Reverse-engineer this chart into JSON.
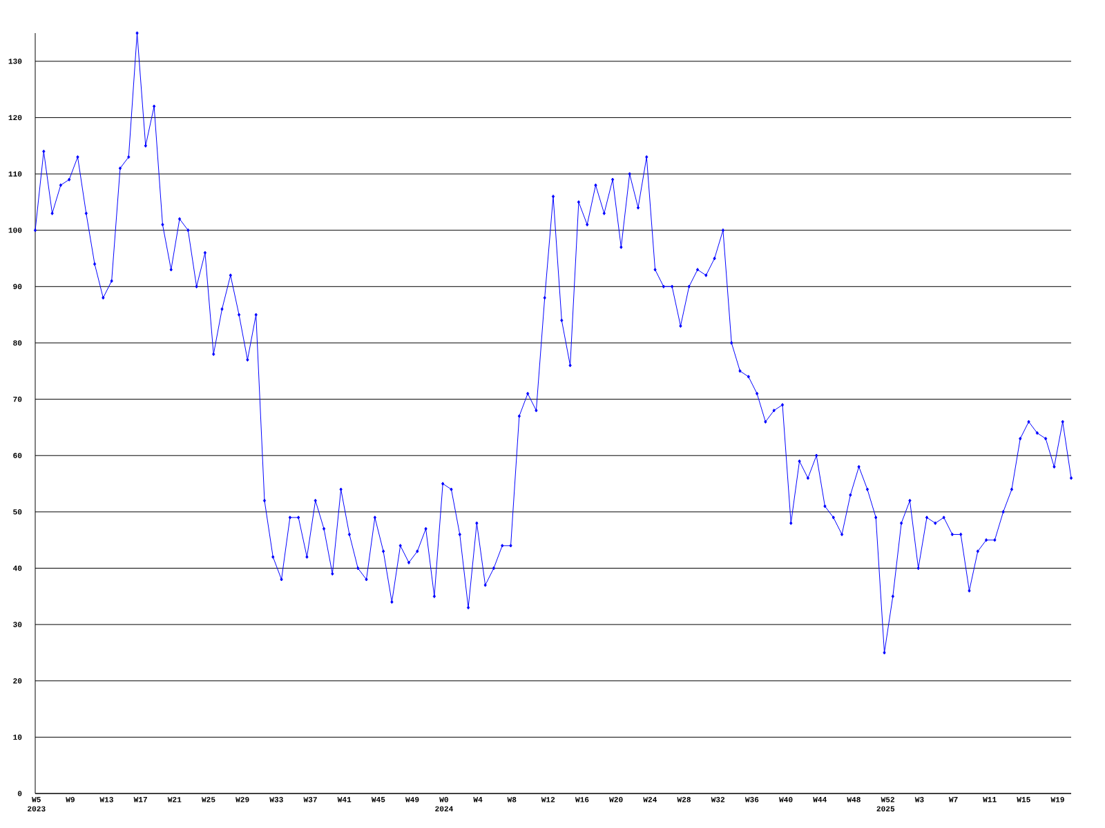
{
  "chart_data": {
    "type": "line",
    "categories": [
      "W5",
      null,
      null,
      null,
      "W9",
      null,
      null,
      null,
      "W13",
      null,
      null,
      null,
      "W17",
      null,
      null,
      null,
      "W21",
      null,
      null,
      null,
      "W25",
      null,
      null,
      null,
      "W29",
      null,
      null,
      null,
      "W33",
      null,
      null,
      null,
      "W37",
      null,
      null,
      null,
      "W41",
      null,
      null,
      null,
      "W45",
      null,
      null,
      null,
      "W49",
      null,
      null,
      null,
      "W0",
      null,
      null,
      null,
      "W4",
      null,
      null,
      null,
      "W8",
      null,
      null,
      null,
      "W12",
      null,
      null,
      null,
      "W16",
      null,
      null,
      null,
      "W20",
      null,
      null,
      null,
      "W24",
      null,
      null,
      null,
      "W28",
      null,
      null,
      null,
      "W32",
      null,
      null,
      null,
      "W36",
      null,
      null,
      null,
      "W40",
      null,
      null,
      null,
      "W44",
      null,
      null,
      null,
      "W48",
      null,
      null,
      null,
      "W52",
      null,
      null,
      null,
      "W3",
      null,
      null,
      null,
      "W7",
      null,
      null,
      null,
      "W11",
      null,
      null,
      null,
      "W15",
      null,
      null,
      null,
      "W19",
      null,
      null
    ],
    "values": [
      100,
      114,
      103,
      108,
      109,
      113,
      103,
      94,
      88,
      91,
      111,
      113,
      135,
      115,
      122,
      101,
      93,
      102,
      100,
      90,
      96,
      78,
      86,
      92,
      85,
      77,
      85,
      52,
      42,
      38,
      49,
      49,
      42,
      52,
      47,
      39,
      54,
      46,
      40,
      38,
      49,
      43,
      34,
      44,
      41,
      43,
      47,
      35,
      55,
      54,
      46,
      33,
      48,
      37,
      40,
      44,
      44,
      67,
      71,
      68,
      88,
      106,
      84,
      76,
      105,
      101,
      108,
      103,
      109,
      97,
      110,
      104,
      113,
      93,
      90,
      90,
      83,
      90,
      93,
      92,
      95,
      100,
      80,
      75,
      74,
      71,
      66,
      68,
      69,
      48,
      59,
      56,
      60,
      51,
      49,
      46,
      53,
      58,
      54,
      49,
      25,
      35,
      48,
      52,
      40,
      49,
      48,
      49,
      46,
      46,
      36,
      43,
      45,
      45,
      50,
      54,
      63,
      66,
      64,
      63,
      58,
      66,
      56
    ],
    "color": "#0000ff",
    "ylim": [
      0,
      135
    ],
    "yticks": [
      0,
      10,
      20,
      30,
      40,
      50,
      60,
      70,
      80,
      90,
      100,
      110,
      120,
      130
    ],
    "annotations": [
      "2023",
      "2024",
      "2025"
    ],
    "grid": "y",
    "marker": "diamond",
    "line_style": "solid"
  }
}
